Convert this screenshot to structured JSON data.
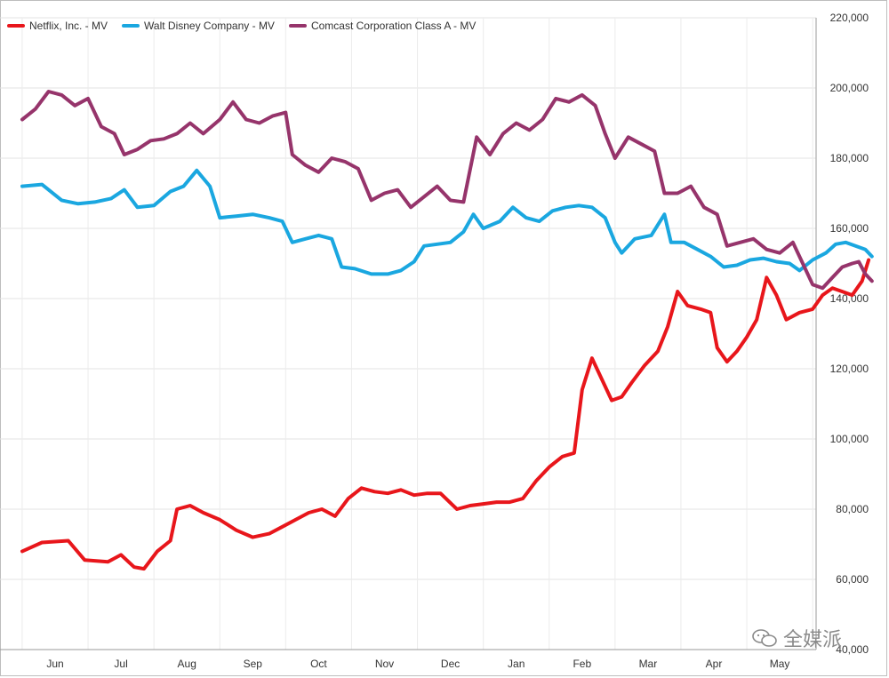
{
  "legend": {
    "netflix": "Netflix, Inc. - MV",
    "disney": "Walt Disney Company - MV",
    "comcast": "Comcast Corporation Class A - MV"
  },
  "watermark": "全媒派",
  "chart_data": {
    "type": "line",
    "x_categories": [
      "Jun",
      "Jul",
      "Aug",
      "Sep",
      "Oct",
      "Nov",
      "Dec",
      "Jan",
      "Feb",
      "Mar",
      "Apr",
      "May"
    ],
    "ylim": [
      40000,
      220000
    ],
    "y_ticks": [
      "40,000",
      "60,000",
      "80,000",
      "100,000",
      "120,000",
      "140,000",
      "160,000",
      "180,000",
      "200,000",
      "220,000"
    ],
    "grid": true,
    "legend_position": "top-left",
    "series": [
      {
        "name": "Netflix, Inc. - MV",
        "color": "#e8161b",
        "points": [
          [
            -0.5,
            68000
          ],
          [
            -0.2,
            70500
          ],
          [
            0.2,
            71000
          ],
          [
            0.45,
            65500
          ],
          [
            0.8,
            65000
          ],
          [
            1.0,
            67000
          ],
          [
            1.2,
            63500
          ],
          [
            1.35,
            63000
          ],
          [
            1.55,
            68000
          ],
          [
            1.75,
            71000
          ],
          [
            1.85,
            80000
          ],
          [
            2.05,
            81000
          ],
          [
            2.25,
            79000
          ],
          [
            2.5,
            77000
          ],
          [
            2.75,
            74000
          ],
          [
            3.0,
            72000
          ],
          [
            3.25,
            73000
          ],
          [
            3.45,
            75000
          ],
          [
            3.65,
            77000
          ],
          [
            3.85,
            79000
          ],
          [
            4.05,
            80000
          ],
          [
            4.25,
            78000
          ],
          [
            4.45,
            83000
          ],
          [
            4.65,
            86000
          ],
          [
            4.85,
            85000
          ],
          [
            5.05,
            84500
          ],
          [
            5.25,
            85500
          ],
          [
            5.45,
            84000
          ],
          [
            5.65,
            84500
          ],
          [
            5.85,
            84500
          ],
          [
            6.1,
            80000
          ],
          [
            6.3,
            81000
          ],
          [
            6.5,
            81500
          ],
          [
            6.7,
            82000
          ],
          [
            6.9,
            82000
          ],
          [
            7.1,
            83000
          ],
          [
            7.3,
            88000
          ],
          [
            7.5,
            92000
          ],
          [
            7.7,
            95000
          ],
          [
            7.88,
            96000
          ],
          [
            8.0,
            114000
          ],
          [
            8.15,
            123000
          ],
          [
            8.3,
            117000
          ],
          [
            8.45,
            111000
          ],
          [
            8.6,
            112000
          ],
          [
            8.75,
            116000
          ],
          [
            8.95,
            121000
          ],
          [
            9.15,
            125000
          ],
          [
            9.3,
            132000
          ],
          [
            9.45,
            142000
          ],
          [
            9.6,
            138000
          ],
          [
            9.8,
            137000
          ],
          [
            9.95,
            136000
          ],
          [
            10.05,
            126000
          ],
          [
            10.2,
            122000
          ],
          [
            10.35,
            125000
          ],
          [
            10.5,
            129000
          ],
          [
            10.65,
            134000
          ],
          [
            10.8,
            146000
          ],
          [
            10.95,
            141000
          ],
          [
            11.1,
            134000
          ],
          [
            11.3,
            136000
          ],
          [
            11.5,
            137000
          ],
          [
            11.65,
            141000
          ],
          [
            11.8,
            143000
          ],
          [
            11.95,
            142000
          ],
          [
            12.1,
            141000
          ],
          [
            12.25,
            145000
          ],
          [
            12.35,
            151000
          ]
        ]
      },
      {
        "name": "Walt Disney Company - MV",
        "color": "#1aa7e0",
        "points": [
          [
            -0.5,
            172000
          ],
          [
            -0.2,
            172500
          ],
          [
            0.1,
            168000
          ],
          [
            0.35,
            167000
          ],
          [
            0.6,
            167500
          ],
          [
            0.85,
            168500
          ],
          [
            1.05,
            171000
          ],
          [
            1.25,
            166000
          ],
          [
            1.5,
            166500
          ],
          [
            1.75,
            170500
          ],
          [
            1.95,
            172000
          ],
          [
            2.15,
            176500
          ],
          [
            2.35,
            172000
          ],
          [
            2.5,
            163000
          ],
          [
            2.75,
            163500
          ],
          [
            3.0,
            164000
          ],
          [
            3.25,
            163000
          ],
          [
            3.45,
            162000
          ],
          [
            3.6,
            156000
          ],
          [
            3.8,
            157000
          ],
          [
            4.0,
            158000
          ],
          [
            4.2,
            157000
          ],
          [
            4.35,
            149000
          ],
          [
            4.55,
            148500
          ],
          [
            4.8,
            147000
          ],
          [
            5.05,
            147000
          ],
          [
            5.25,
            148000
          ],
          [
            5.45,
            150500
          ],
          [
            5.6,
            155000
          ],
          [
            5.8,
            155500
          ],
          [
            6.0,
            156000
          ],
          [
            6.2,
            159000
          ],
          [
            6.35,
            164000
          ],
          [
            6.5,
            160000
          ],
          [
            6.75,
            162000
          ],
          [
            6.95,
            166000
          ],
          [
            7.15,
            163000
          ],
          [
            7.35,
            162000
          ],
          [
            7.55,
            165000
          ],
          [
            7.75,
            166000
          ],
          [
            7.95,
            166500
          ],
          [
            8.15,
            166000
          ],
          [
            8.35,
            163000
          ],
          [
            8.5,
            156000
          ],
          [
            8.6,
            153000
          ],
          [
            8.8,
            157000
          ],
          [
            9.05,
            158000
          ],
          [
            9.25,
            164000
          ],
          [
            9.35,
            156000
          ],
          [
            9.55,
            156000
          ],
          [
            9.75,
            154000
          ],
          [
            9.95,
            152000
          ],
          [
            10.15,
            149000
          ],
          [
            10.35,
            149500
          ],
          [
            10.55,
            151000
          ],
          [
            10.75,
            151500
          ],
          [
            10.95,
            150500
          ],
          [
            11.15,
            150000
          ],
          [
            11.3,
            148000
          ],
          [
            11.5,
            151000
          ],
          [
            11.7,
            153000
          ],
          [
            11.85,
            155500
          ],
          [
            12.0,
            156000
          ],
          [
            12.15,
            155000
          ],
          [
            12.3,
            154000
          ],
          [
            12.4,
            152000
          ]
        ]
      },
      {
        "name": "Comcast Corporation Class A - MV",
        "color": "#96346b",
        "points": [
          [
            -0.5,
            191000
          ],
          [
            -0.3,
            194000
          ],
          [
            -0.1,
            199000
          ],
          [
            0.1,
            198000
          ],
          [
            0.3,
            195000
          ],
          [
            0.5,
            197000
          ],
          [
            0.7,
            189000
          ],
          [
            0.9,
            187000
          ],
          [
            1.05,
            181000
          ],
          [
            1.25,
            182500
          ],
          [
            1.45,
            185000
          ],
          [
            1.65,
            185500
          ],
          [
            1.85,
            187000
          ],
          [
            2.05,
            190000
          ],
          [
            2.25,
            187000
          ],
          [
            2.5,
            191000
          ],
          [
            2.7,
            196000
          ],
          [
            2.9,
            191000
          ],
          [
            3.1,
            190000
          ],
          [
            3.3,
            192000
          ],
          [
            3.5,
            193000
          ],
          [
            3.6,
            181000
          ],
          [
            3.8,
            178000
          ],
          [
            4.0,
            176000
          ],
          [
            4.2,
            180000
          ],
          [
            4.4,
            179000
          ],
          [
            4.6,
            177000
          ],
          [
            4.8,
            168000
          ],
          [
            5.0,
            170000
          ],
          [
            5.2,
            171000
          ],
          [
            5.4,
            166000
          ],
          [
            5.6,
            169000
          ],
          [
            5.8,
            172000
          ],
          [
            6.0,
            168000
          ],
          [
            6.2,
            167500
          ],
          [
            6.4,
            186000
          ],
          [
            6.6,
            181000
          ],
          [
            6.8,
            187000
          ],
          [
            7.0,
            190000
          ],
          [
            7.2,
            188000
          ],
          [
            7.4,
            191000
          ],
          [
            7.6,
            197000
          ],
          [
            7.8,
            196000
          ],
          [
            8.0,
            198000
          ],
          [
            8.2,
            195000
          ],
          [
            8.35,
            187000
          ],
          [
            8.5,
            180000
          ],
          [
            8.7,
            186000
          ],
          [
            8.9,
            184000
          ],
          [
            9.1,
            182000
          ],
          [
            9.25,
            170000
          ],
          [
            9.45,
            170000
          ],
          [
            9.65,
            172000
          ],
          [
            9.85,
            166000
          ],
          [
            10.05,
            164000
          ],
          [
            10.2,
            155000
          ],
          [
            10.4,
            156000
          ],
          [
            10.6,
            157000
          ],
          [
            10.8,
            154000
          ],
          [
            11.0,
            153000
          ],
          [
            11.2,
            156000
          ],
          [
            11.35,
            150000
          ],
          [
            11.5,
            144000
          ],
          [
            11.65,
            143000
          ],
          [
            11.8,
            146000
          ],
          [
            11.95,
            149000
          ],
          [
            12.1,
            150000
          ],
          [
            12.2,
            150500
          ],
          [
            12.3,
            147000
          ],
          [
            12.4,
            145000
          ]
        ]
      }
    ]
  }
}
